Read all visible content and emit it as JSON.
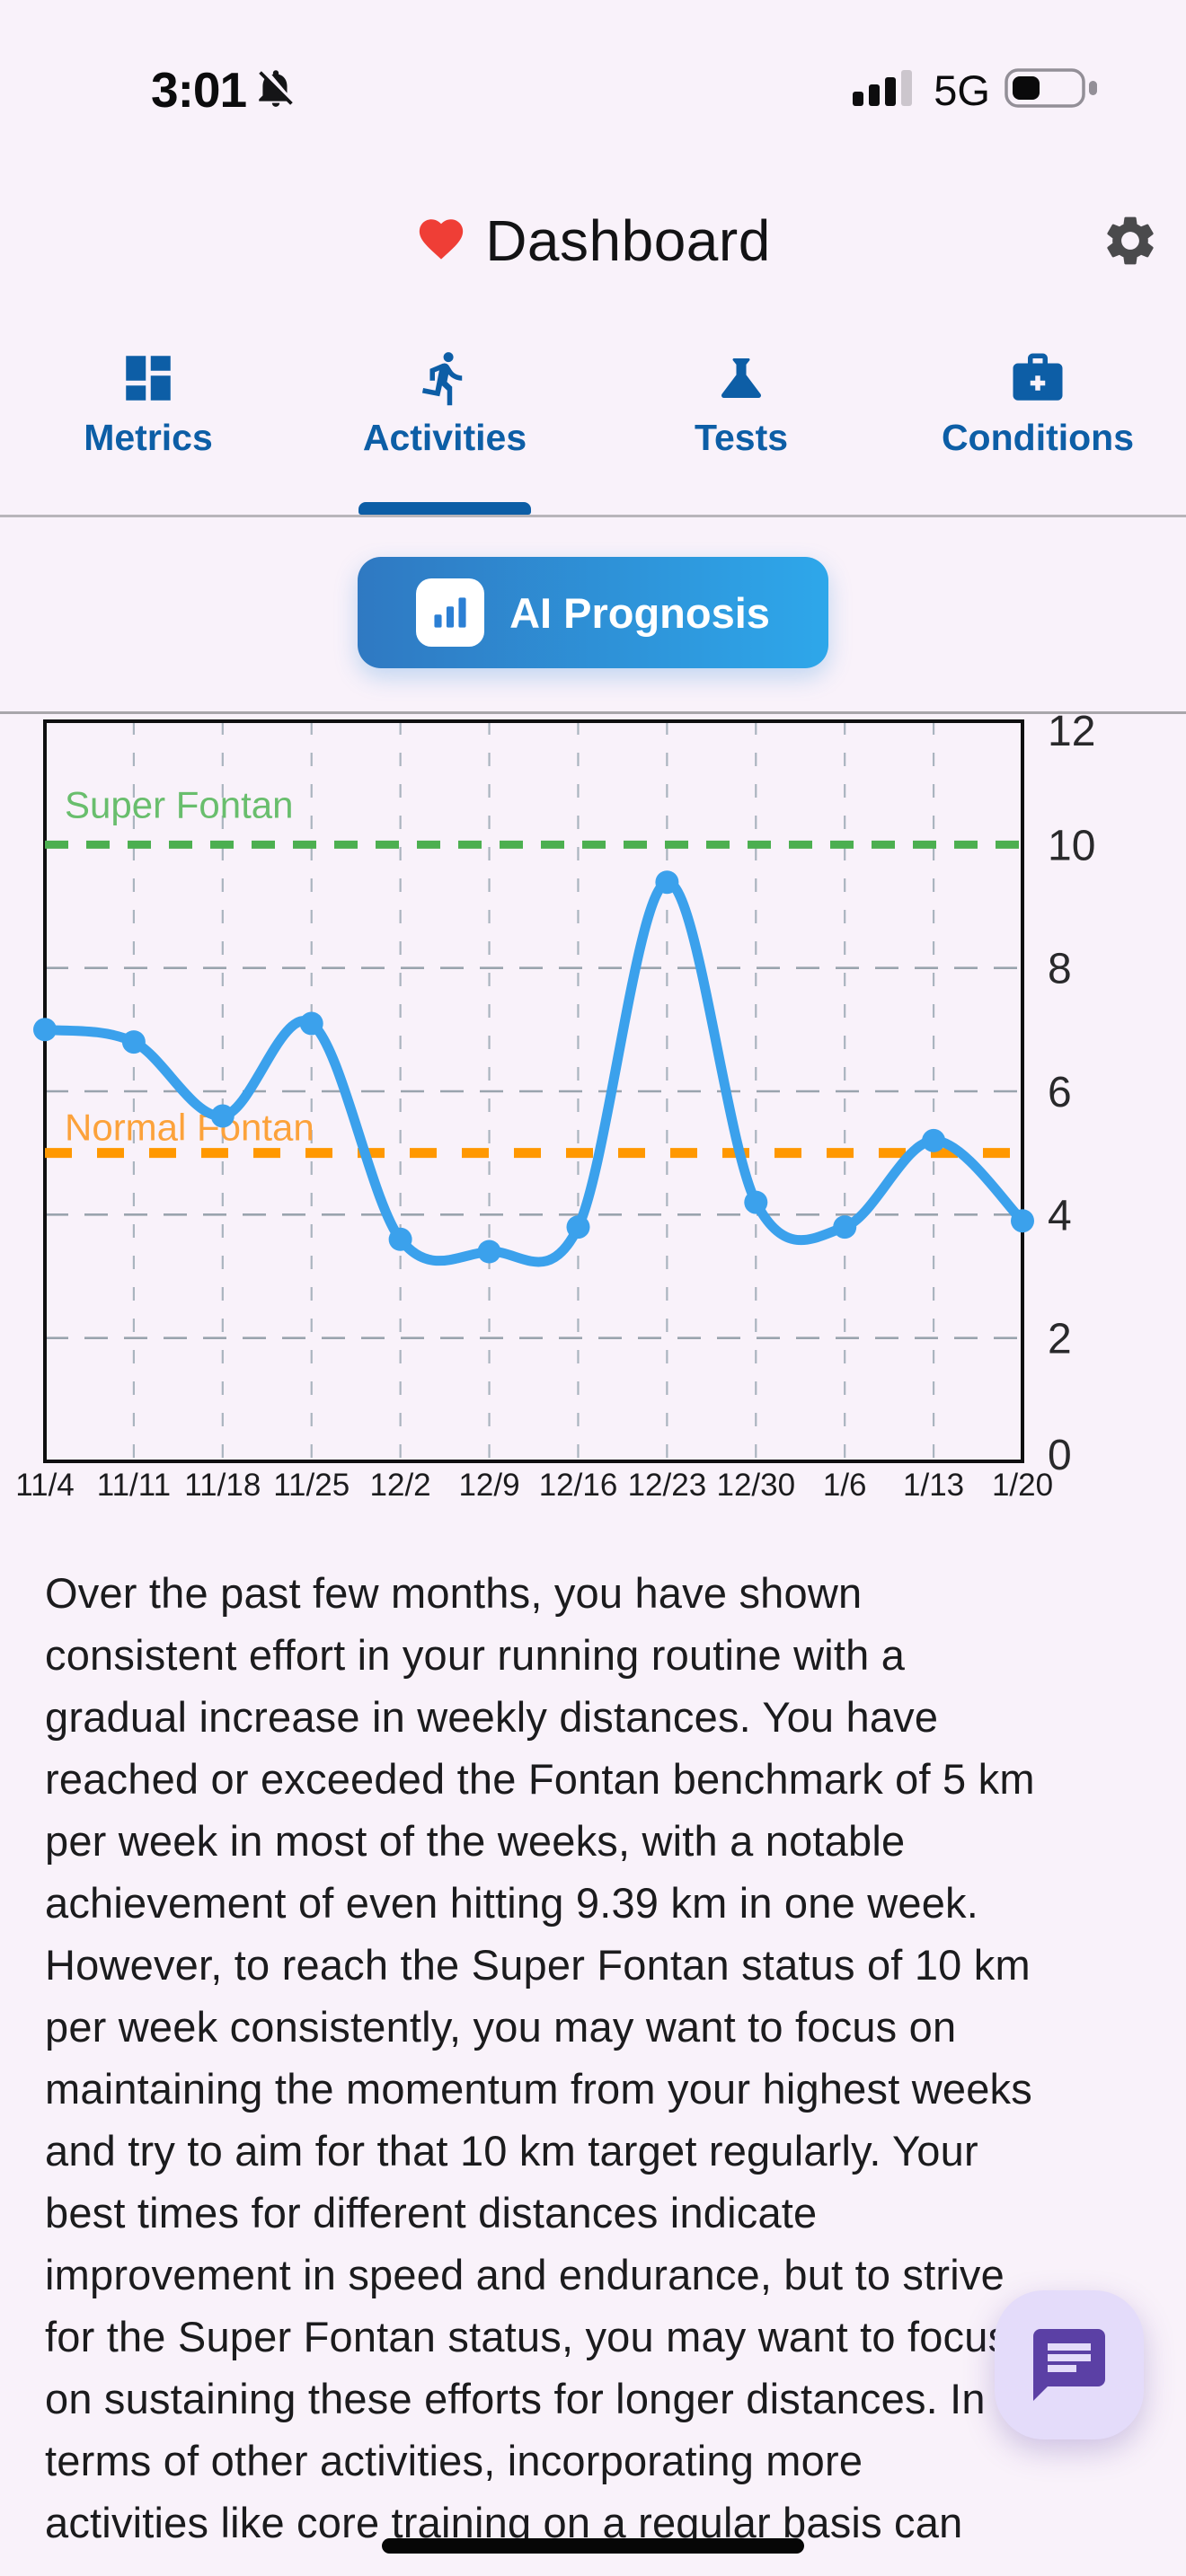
{
  "colors": {
    "background": "#F9F2FA",
    "accent_blue": "#0D5EA6",
    "button_gradient_start": "#2F79C2",
    "button_gradient_end": "#2EA7EA",
    "heart_red": "#EF3E36",
    "fab_bg": "#E4DCFA",
    "fab_icon": "#5B40A5",
    "threshold_green": "#4CAF50",
    "threshold_orange": "#FF9800",
    "line_blue": "#3BA1EC"
  },
  "status_bar": {
    "time": "3:01",
    "network": "5G",
    "muted": true,
    "signal": {
      "filled": 3,
      "total": 4
    },
    "battery_level": 0.4
  },
  "header": {
    "title": "Dashboard"
  },
  "tabs": [
    {
      "id": "metrics",
      "label": "Metrics",
      "active": false
    },
    {
      "id": "activities",
      "label": "Activities",
      "active": true
    },
    {
      "id": "tests",
      "label": "Tests",
      "active": false
    },
    {
      "id": "conditions",
      "label": "Conditions",
      "active": false
    }
  ],
  "prognosis_button": {
    "label": "AI Prognosis"
  },
  "chart_data": {
    "type": "line",
    "title": "",
    "xlabel": "",
    "ylabel": "",
    "x": [
      "11/4",
      "11/11",
      "11/18",
      "11/25",
      "12/2",
      "12/9",
      "12/16",
      "12/23",
      "12/30",
      "1/6",
      "1/13",
      "1/20"
    ],
    "values": [
      7.0,
      6.8,
      5.6,
      7.1,
      3.6,
      3.4,
      3.8,
      9.39,
      4.2,
      3.8,
      5.2,
      3.9
    ],
    "ylim": [
      0,
      12
    ],
    "yticks": [
      0,
      2,
      4,
      6,
      8,
      10,
      12
    ],
    "grid_y": [
      2,
      4,
      6,
      8
    ],
    "grid": true,
    "line_color": "#3BA1EC",
    "thresholds": [
      {
        "label": "Super Fontan",
        "value": 10,
        "line_color": "#4CAF50",
        "label_color": "#69BE6D"
      },
      {
        "label": "Normal Fontan",
        "value": 5,
        "line_color": "#FF9800",
        "label_color": "#FCA23B"
      }
    ]
  },
  "analysis": {
    "paragraph": "Over the past few months, you have shown\nconsistent effort in your running routine with a\ngradual increase in weekly distances. You have\nreached or exceeded the Fontan benchmark of 5 km\nper week in most of the weeks, with a notable\nachievement of even hitting 9.39 km in one week.\nHowever, to reach the Super Fontan status of 10 km\nper week consistently, you may want to focus on\nmaintaining the momentum from your highest weeks\nand try to aim for that 10 km target regularly. Your\nbest times for different distances indicate\nimprovement in speed and endurance, but to strive\nfor the Super Fontan status, you may want to focus\non sustaining these efforts for longer distances. In\nterms of other activities, incorporating more\nactivities like core training on a regular basis can"
  },
  "fab": {
    "icon": "chat"
  }
}
